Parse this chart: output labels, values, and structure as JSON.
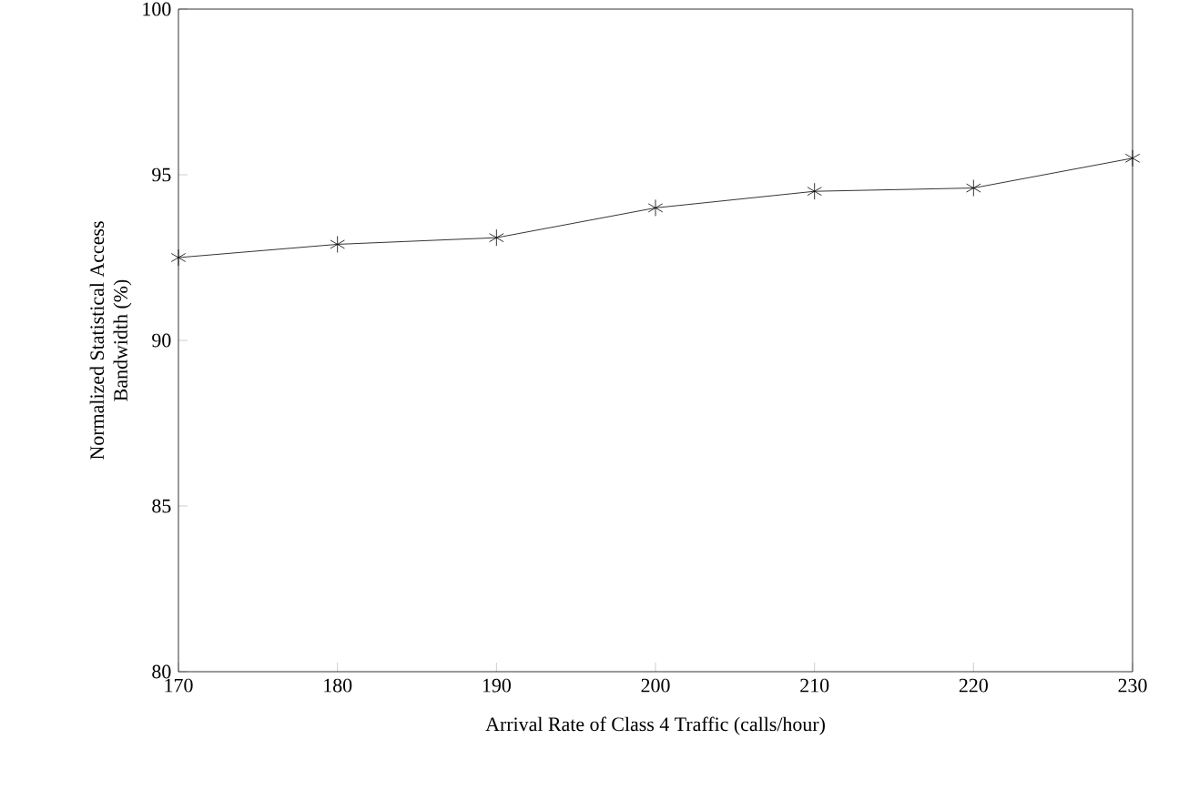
{
  "chart_data": {
    "type": "line",
    "xlabel": "Arrival Rate of Class 4 Traffic (calls/hour)",
    "ylabel": "Normalized Statistical Access Bandwidth  (%)",
    "x": [
      170,
      180,
      190,
      200,
      210,
      220,
      230
    ],
    "series": [
      {
        "color": "#000000",
        "values": [
          92.5,
          92.9,
          93.1,
          94.0,
          94.5,
          94.6,
          95.5
        ]
      }
    ],
    "xlim": [
      170,
      230
    ],
    "xticks": [
      170,
      180,
      190,
      200,
      210,
      220,
      230
    ],
    "ylim": [
      80,
      100
    ],
    "yticks": [
      80,
      85,
      90,
      95,
      100
    ],
    "grid": false,
    "marker": "cross",
    "line_style": "solid"
  }
}
